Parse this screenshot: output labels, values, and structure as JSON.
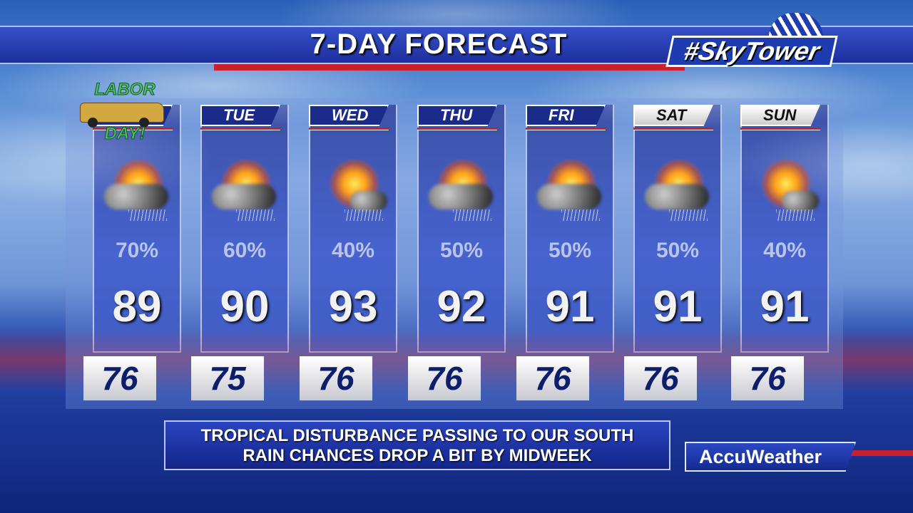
{
  "title": "7-DAY FORECAST",
  "station_logo": "#SkyTower",
  "holiday_badge": {
    "line1": "LABOR",
    "line2": "DAY!"
  },
  "days": [
    {
      "name": "",
      "pop": "70%",
      "high": "89",
      "low": "76",
      "icon": "sun-cloud-rain-icon"
    },
    {
      "name": "TUE",
      "pop": "60%",
      "high": "90",
      "low": "75",
      "icon": "sun-cloud-rain-icon"
    },
    {
      "name": "WED",
      "pop": "40%",
      "high": "93",
      "low": "76",
      "icon": "sun-small-cloud-rain-icon"
    },
    {
      "name": "THU",
      "pop": "50%",
      "high": "92",
      "low": "76",
      "icon": "sun-cloud-rain-icon"
    },
    {
      "name": "FRI",
      "pop": "50%",
      "high": "91",
      "low": "76",
      "icon": "sun-cloud-rain-icon"
    },
    {
      "name": "SAT",
      "pop": "50%",
      "high": "91",
      "low": "76",
      "icon": "sun-cloud-rain-icon"
    },
    {
      "name": "SUN",
      "pop": "40%",
      "high": "91",
      "low": "76",
      "icon": "sun-small-cloud-rain-icon"
    }
  ],
  "caption": {
    "line1": "TROPICAL DISTURBANCE PASSING TO OUR SOUTH",
    "line2": "RAIN CHANCES DROP A BIT BY MIDWEEK"
  },
  "sponsor": "AccuWeather",
  "colors": {
    "accent_red": "#c8202c",
    "panel_blue": "#2b49c8",
    "low_text": "#0d1e6a"
  }
}
